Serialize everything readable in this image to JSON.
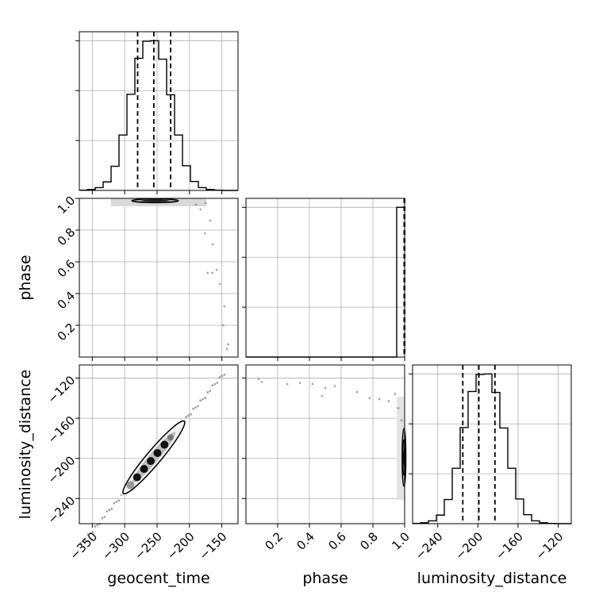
{
  "chart_data": {
    "type": "corner",
    "parameters": [
      "geocent_time",
      "phase",
      "luminosity_distance"
    ],
    "axis_labels": {
      "geocent_time": "geocent_time",
      "phase": "phase",
      "luminosity_distance": "luminosity_distance"
    },
    "ranges": {
      "geocent_time": [
        -370,
        -125
      ],
      "phase": [
        0.0,
        1.0
      ],
      "luminosity_distance": [
        -265,
        -107
      ]
    },
    "ticks": {
      "geocent_time": [
        {
          "v": -350,
          "label": "−350"
        },
        {
          "v": -300,
          "label": "−300"
        },
        {
          "v": -250,
          "label": "−250"
        },
        {
          "v": -200,
          "label": "−200"
        },
        {
          "v": -150,
          "label": "−150"
        }
      ],
      "phase": [
        {
          "v": 0.2,
          "label": "0.2"
        },
        {
          "v": 0.4,
          "label": "0.4"
        },
        {
          "v": 0.6,
          "label": "0.6"
        },
        {
          "v": 0.8,
          "label": "0.8"
        },
        {
          "v": 1.0,
          "label": "1.0"
        }
      ],
      "luminosity_distance": [
        {
          "v": -240,
          "label": "−240"
        },
        {
          "v": -200,
          "label": "−200"
        },
        {
          "v": -160,
          "label": "−160"
        },
        {
          "v": -120,
          "label": "−120"
        }
      ]
    },
    "grid": true,
    "line_color": "#000000",
    "point_color": "#555555",
    "histograms": {
      "geocent_time": {
        "bin_edges": [
          -370,
          -357.75,
          -345.5,
          -333.25,
          -321,
          -308.75,
          -296.5,
          -284.25,
          -272,
          -259.75,
          -247.5,
          -235.25,
          -223,
          -210.75,
          -198.5,
          -186.25,
          -174,
          -161.75,
          -149.5,
          -137.25,
          -125
        ],
        "counts": [
          0.5,
          2,
          6,
          18,
          51,
          117,
          203,
          279,
          315,
          316,
          277,
          202,
          117,
          52,
          19,
          6,
          2,
          0.5,
          0,
          0
        ],
        "quantiles": [
          -280,
          -255,
          -229
        ]
      },
      "phase": {
        "bin_edges": [
          0.0,
          0.05,
          0.1,
          0.15,
          0.2,
          0.25,
          0.3,
          0.35,
          0.4,
          0.45,
          0.5,
          0.55,
          0.6,
          0.65,
          0.7,
          0.75,
          0.8,
          0.85,
          0.9,
          0.95,
          1.0
        ],
        "counts": [
          0,
          0,
          0,
          0,
          0,
          0,
          0,
          0,
          0,
          0,
          0,
          0,
          0,
          0,
          0,
          0,
          0,
          0,
          0,
          0.92
        ],
        "quantiles": [
          0.997,
          0.999,
          1.0
        ]
      },
      "luminosity_distance": {
        "bin_edges": [
          -265,
          -257.1,
          -249.2,
          -241.3,
          -233.4,
          -225.5,
          -217.6,
          -209.7,
          -201.8,
          -193.9,
          -186,
          -178.1,
          -170.2,
          -162.3,
          -154.4,
          -146.5,
          -138.6,
          -130.7,
          -122.8,
          -114.9,
          -107
        ],
        "counts": [
          0.5,
          2,
          6,
          18,
          51,
          117,
          203,
          279,
          315,
          316,
          277,
          202,
          117,
          52,
          19,
          6,
          2,
          0.5,
          0,
          0
        ],
        "quantiles": [
          -215,
          -199,
          -183
        ]
      }
    },
    "contours": {
      "geocent_time_vs_luminosity_distance": {
        "ellipse": {
          "center_x": -255,
          "center_y": -199,
          "semi_x": 47,
          "semi_y": 36,
          "slope": 0.77
        }
      },
      "geocent_time_vs_phase": {
        "ellipse": {
          "center_x": -253,
          "center_y": 0.985,
          "semi_x": 36,
          "semi_y": 0.012
        }
      },
      "phase_vs_luminosity_distance": {
        "ellipse": {
          "center_x": 0.996,
          "center_y": -199,
          "semi_x": 0.012,
          "semi_y": 16
        }
      }
    },
    "scatter": {
      "geocent_time_vs_phase": [
        {
          "x": -140,
          "y": 0.08
        },
        {
          "x": -142,
          "y": 0.05
        },
        {
          "x": -148,
          "y": 0.2
        },
        {
          "x": -146,
          "y": 0.32
        },
        {
          "x": -153,
          "y": 0.46
        },
        {
          "x": -165,
          "y": 0.53
        },
        {
          "x": -172,
          "y": 0.53
        },
        {
          "x": -158,
          "y": 0.55
        },
        {
          "x": -164,
          "y": 0.71
        },
        {
          "x": -176,
          "y": 0.78
        },
        {
          "x": -168,
          "y": 0.86
        },
        {
          "x": -183,
          "y": 0.93
        },
        {
          "x": -190,
          "y": 0.96
        },
        {
          "x": -175,
          "y": 0.97
        }
      ],
      "phase_vs_luminosity_distance": [
        {
          "x": 0.08,
          "y": -121
        },
        {
          "x": 0.1,
          "y": -124
        },
        {
          "x": 0.26,
          "y": -126
        },
        {
          "x": 0.34,
          "y": -125
        },
        {
          "x": 0.42,
          "y": -126
        },
        {
          "x": 0.5,
          "y": -130
        },
        {
          "x": 0.48,
          "y": -138
        },
        {
          "x": 0.56,
          "y": -128
        },
        {
          "x": 0.7,
          "y": -134
        },
        {
          "x": 0.78,
          "y": -140
        },
        {
          "x": 0.84,
          "y": -141
        },
        {
          "x": 0.9,
          "y": -143
        },
        {
          "x": 0.94,
          "y": -136
        },
        {
          "x": 0.96,
          "y": -150
        },
        {
          "x": 0.98,
          "y": -162
        }
      ]
    }
  }
}
